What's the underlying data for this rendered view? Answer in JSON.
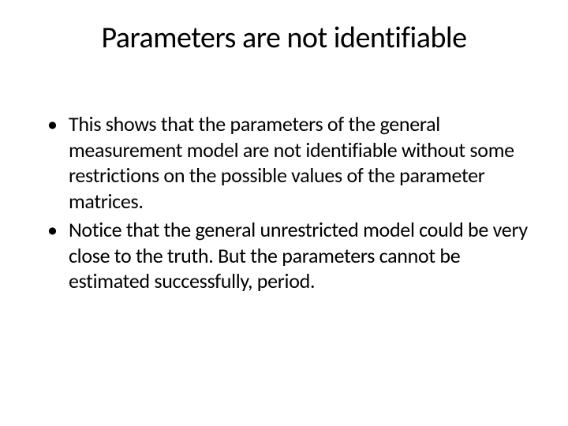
{
  "slide": {
    "title": "Parameters are not identifiable",
    "bullets": [
      {
        "marker": "•",
        "text": "This shows that the parameters of the general measurement model are not identifiable without some restrictions on the possible values of the parameter matrices."
      },
      {
        "marker": "•",
        "text": "Notice that the general unrestricted model could be very close to the truth.  But the parameters cannot be estimated successfully, period."
      }
    ]
  },
  "styling": {
    "background_color": "#ffffff",
    "text_color": "#000000",
    "title_fontsize": 38,
    "body_fontsize": 26,
    "font_family": "Calibri"
  }
}
